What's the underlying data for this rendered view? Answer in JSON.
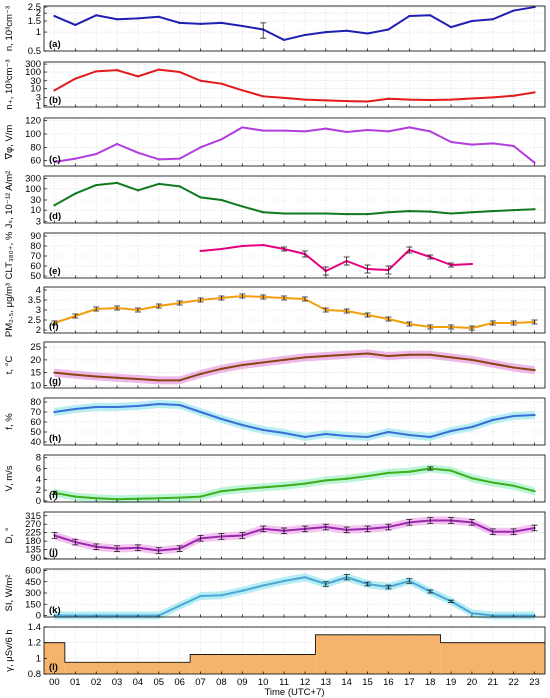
{
  "figure": {
    "hours": [
      "00",
      "01",
      "02",
      "03",
      "04",
      "05",
      "06",
      "07",
      "08",
      "09",
      "10",
      "11",
      "12",
      "13",
      "14",
      "15",
      "16",
      "17",
      "18",
      "19",
      "20",
      "21",
      "22",
      "23"
    ],
    "xlabel": "Time (UTC+7)"
  },
  "chart_data": [
    {
      "type": "line",
      "panel": "(a)",
      "ylabel_lines": [
        "n, 10³cm⁻³"
      ],
      "scale": "log",
      "yticks": [
        0.5,
        1,
        1.5,
        2,
        2.5
      ],
      "ylim": [
        0.5,
        2.6
      ],
      "color": "#1f1fb4",
      "band": false,
      "x": [
        0,
        1,
        2,
        3,
        4,
        5,
        6,
        7,
        8,
        9,
        10,
        11,
        12,
        13,
        14,
        15,
        16,
        17,
        18,
        19,
        20,
        21,
        22,
        23
      ],
      "values": [
        1.8,
        1.3,
        1.85,
        1.6,
        1.65,
        1.75,
        1.4,
        1.35,
        1.4,
        1.25,
        1.1,
        0.75,
        0.9,
        1.0,
        1.05,
        0.95,
        1.1,
        1.8,
        1.85,
        1.2,
        1.5,
        1.6,
        2.2,
        2.5
      ],
      "errors": {
        "10": 0.3
      }
    },
    {
      "type": "line",
      "panel": "(b)",
      "ylabel_lines": [
        "n₊, 10³cm⁻³"
      ],
      "scale": "log",
      "yticks": [
        1,
        3,
        10,
        30,
        100,
        300
      ],
      "ylim": [
        0.8,
        400
      ],
      "color": "#e31a1c",
      "band": false,
      "x": [
        0,
        1,
        2,
        3,
        4,
        5,
        6,
        7,
        8,
        9,
        10,
        11,
        12,
        13,
        14,
        15,
        16,
        17,
        18,
        19,
        20,
        21,
        22,
        23
      ],
      "values": [
        8,
        40,
        110,
        130,
        55,
        140,
        100,
        30,
        20,
        8,
        3.5,
        2.8,
        2.2,
        2.0,
        1.8,
        1.7,
        2.5,
        2.2,
        2.1,
        2.2,
        2.6,
        3.0,
        3.8,
        6
      ]
    },
    {
      "type": "line",
      "panel": "(c)",
      "ylabel_lines": [
        "∇φ, V/m"
      ],
      "scale": "linear",
      "yticks": [
        60,
        80,
        100,
        120
      ],
      "ylim": [
        52,
        124
      ],
      "color": "#b23ce0",
      "band": false,
      "x": [
        0,
        1,
        2,
        3,
        4,
        5,
        6,
        7,
        8,
        9,
        10,
        11,
        12,
        13,
        14,
        15,
        16,
        17,
        18,
        19,
        20,
        21,
        22,
        23
      ],
      "values": [
        58,
        63,
        70,
        85,
        72,
        62,
        63,
        80,
        92,
        110,
        105,
        105,
        104,
        108,
        103,
        106,
        104,
        110,
        104,
        88,
        84,
        86,
        82,
        57
      ]
    },
    {
      "type": "line",
      "panel": "(d)",
      "ylabel_lines": [
        "Jₛ, 10⁻¹² A/m²"
      ],
      "scale": "log",
      "yticks": [
        3,
        10,
        30,
        100,
        300
      ],
      "ylim": [
        2.5,
        400
      ],
      "color": "#0f7a1e",
      "band": false,
      "x": [
        0,
        1,
        2,
        3,
        4,
        5,
        6,
        7,
        8,
        9,
        10,
        11,
        12,
        13,
        14,
        15,
        16,
        17,
        18,
        19,
        20,
        21,
        22,
        23
      ],
      "values": [
        17,
        60,
        150,
        190,
        85,
        170,
        130,
        40,
        30,
        15,
        8,
        7,
        7,
        7,
        6.5,
        6.5,
        8,
        9,
        8.5,
        7,
        8,
        9,
        10,
        11
      ]
    },
    {
      "type": "line",
      "panel": "(e)",
      "ylabel_lines": [
        "CLT₃₈₀₊, %"
      ],
      "scale": "linear",
      "yticks": [
        50,
        60,
        70,
        80,
        90
      ],
      "ylim": [
        48,
        93
      ],
      "color": "#e6007e",
      "band": false,
      "x": [
        7,
        8,
        9,
        10,
        11,
        12,
        13,
        14,
        15,
        16,
        17,
        18,
        19,
        20
      ],
      "values": [
        75,
        77,
        80,
        81,
        77,
        72,
        55,
        65,
        57,
        56,
        76,
        69,
        61,
        62
      ],
      "errors": {
        "11": 2,
        "12": 3,
        "13": 4,
        "14": 4,
        "15": 4,
        "16": 4,
        "17": 3,
        "18": 2,
        "19": 2
      }
    },
    {
      "type": "line",
      "panel": "(f)",
      "ylabel_lines": [
        "PM₂.₅, μg/m³"
      ],
      "scale": "linear",
      "yticks": [
        2,
        2.5,
        3,
        3.5,
        4
      ],
      "ylim": [
        1.85,
        4.15
      ],
      "color": "#f29e0d",
      "band": false,
      "x": [
        0,
        1,
        2,
        3,
        4,
        5,
        6,
        7,
        8,
        9,
        10,
        11,
        12,
        13,
        14,
        15,
        16,
        17,
        18,
        19,
        20,
        21,
        22,
        23
      ],
      "values": [
        2.35,
        2.7,
        3.05,
        3.1,
        3.0,
        3.2,
        3.35,
        3.5,
        3.6,
        3.7,
        3.65,
        3.6,
        3.55,
        3.0,
        2.95,
        2.75,
        2.55,
        2.3,
        2.15,
        2.15,
        2.1,
        2.35,
        2.35,
        2.4
      ],
      "errors": {
        "0": 0.1,
        "1": 0.1,
        "2": 0.1,
        "3": 0.1,
        "4": 0.1,
        "5": 0.1,
        "6": 0.1,
        "7": 0.1,
        "8": 0.1,
        "9": 0.1,
        "10": 0.1,
        "11": 0.1,
        "12": 0.1,
        "13": 0.1,
        "14": 0.1,
        "15": 0.1,
        "16": 0.1,
        "17": 0.1,
        "18": 0.1,
        "19": 0.1,
        "20": 0.1,
        "21": 0.1,
        "22": 0.1,
        "23": 0.1
      }
    },
    {
      "type": "line",
      "panel": "(g)",
      "ylabel_lines": [
        "t, °C"
      ],
      "scale": "linear",
      "yticks": [
        10,
        15,
        20,
        25
      ],
      "ylim": [
        9,
        27
      ],
      "color": "#8b4513",
      "band": true,
      "band_color": "#e8a0e0",
      "x": [
        0,
        1,
        2,
        3,
        4,
        5,
        6,
        7,
        8,
        9,
        10,
        11,
        12,
        13,
        14,
        15,
        16,
        17,
        18,
        19,
        20,
        21,
        22,
        23
      ],
      "values": [
        15,
        14.2,
        13.5,
        13,
        12.5,
        12,
        12,
        14.5,
        16.5,
        18,
        19,
        20,
        21,
        21.5,
        22,
        22.5,
        21.5,
        22,
        22,
        21,
        20,
        18.5,
        17,
        16
      ]
    },
    {
      "type": "line",
      "panel": "(h)",
      "ylabel_lines": [
        "f, %"
      ],
      "scale": "linear",
      "yticks": [
        40,
        50,
        60,
        70,
        80
      ],
      "ylim": [
        37,
        84
      ],
      "color": "#3a6fd8",
      "band": true,
      "band_color": "#9ee8f0",
      "x": [
        0,
        1,
        2,
        3,
        4,
        5,
        6,
        7,
        8,
        9,
        10,
        11,
        12,
        13,
        14,
        15,
        16,
        17,
        18,
        19,
        20,
        21,
        22,
        23
      ],
      "values": [
        70,
        73,
        75,
        75,
        76,
        78,
        77,
        70,
        63,
        57,
        52,
        49,
        45,
        48,
        46,
        45,
        50,
        47,
        45,
        51,
        55,
        62,
        66,
        67
      ]
    },
    {
      "type": "line",
      "panel": "(i)",
      "ylabel_lines": [
        "V, m/s"
      ],
      "scale": "linear",
      "yticks": [
        0,
        2,
        4,
        6,
        8
      ],
      "ylim": [
        -0.2,
        8.5
      ],
      "color": "#3fae1c",
      "band": true,
      "band_color": "#a6f0c8",
      "x": [
        0,
        1,
        2,
        3,
        4,
        5,
        6,
        7,
        8,
        9,
        10,
        11,
        12,
        13,
        14,
        15,
        16,
        17,
        18,
        19,
        20,
        21,
        22,
        23
      ],
      "values": [
        1.5,
        0.8,
        0.5,
        0.3,
        0.4,
        0.5,
        0.6,
        0.8,
        1.8,
        2.2,
        2.5,
        2.8,
        3.2,
        3.8,
        4.1,
        4.6,
        5.2,
        5.4,
        6.0,
        5.6,
        4.2,
        3.4,
        2.8,
        1.8
      ],
      "errors": {
        "0": 0.3,
        "18": 0.3
      }
    },
    {
      "type": "line",
      "panel": "(j)",
      "ylabel_lines": [
        "D, °"
      ],
      "scale": "linear",
      "yticks": [
        90,
        135,
        180,
        225,
        270,
        315
      ],
      "ylim": [
        85,
        335
      ],
      "color": "#9c27b0",
      "band": true,
      "band_color": "#f0b0ec",
      "x": [
        0,
        1,
        2,
        3,
        4,
        5,
        6,
        7,
        8,
        9,
        10,
        11,
        12,
        13,
        14,
        15,
        16,
        17,
        18,
        19,
        20,
        21,
        22,
        23
      ],
      "values": [
        210,
        175,
        150,
        140,
        145,
        130,
        140,
        195,
        205,
        210,
        245,
        235,
        245,
        255,
        240,
        245,
        255,
        280,
        290,
        290,
        280,
        230,
        230,
        250
      ],
      "errors": {
        "0": 15,
        "1": 15,
        "2": 15,
        "3": 15,
        "4": 15,
        "5": 15,
        "6": 15,
        "7": 15,
        "8": 15,
        "9": 15,
        "10": 15,
        "11": 15,
        "12": 15,
        "13": 15,
        "14": 15,
        "15": 15,
        "16": 15,
        "17": 15,
        "18": 15,
        "19": 15,
        "20": 15,
        "21": 15,
        "22": 15,
        "23": 15
      }
    },
    {
      "type": "line",
      "panel": "(k)",
      "ylabel_lines": [
        "SI, W/m²"
      ],
      "scale": "linear",
      "yticks": [
        0,
        150,
        300,
        450,
        600
      ],
      "ylim": [
        -20,
        620
      ],
      "color": "#4da6d6",
      "band": true,
      "band_color": "#9ee8f0",
      "x": [
        0,
        1,
        2,
        3,
        4,
        5,
        6,
        7,
        8,
        9,
        10,
        11,
        12,
        13,
        14,
        15,
        16,
        17,
        18,
        19,
        20,
        21,
        22,
        23
      ],
      "values": [
        0,
        0,
        0,
        0,
        0,
        0,
        130,
        260,
        270,
        330,
        400,
        460,
        510,
        420,
        510,
        420,
        380,
        460,
        320,
        190,
        30,
        0,
        0,
        0
      ],
      "errors": {
        "13": 30,
        "14": 35,
        "15": 25,
        "16": 25,
        "17": 30,
        "18": 20,
        "19": 15
      }
    },
    {
      "type": "step",
      "panel": "(l)",
      "ylabel_lines": [
        "γ, μSv/6 h"
      ],
      "scale": "linear",
      "yticks": [
        0.8,
        1,
        1.2,
        1.4
      ],
      "ylim": [
        0.8,
        1.4
      ],
      "color": "#000000",
      "fill": "#f5b36b",
      "edges": [
        -0.5,
        0.5,
        6.5,
        12.5,
        18.5,
        23.5
      ],
      "values": [
        1.2,
        0.95,
        1.05,
        1.3,
        1.2
      ]
    }
  ]
}
